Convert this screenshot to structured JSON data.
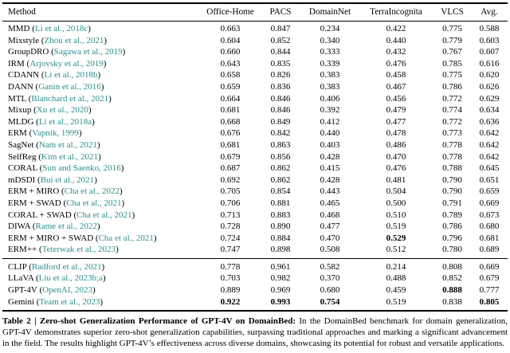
{
  "table": {
    "header": [
      "Method",
      "Office-Home",
      "PACS",
      "DomainNet",
      "TerraIncognita",
      "VLCS",
      "Avg."
    ],
    "sections": [
      {
        "name": "traditional-methods",
        "rows": [
          {
            "method": "MMD",
            "cite": "Li et al., 2018c",
            "values": [
              "0.663",
              "0.847",
              "0.234",
              "0.422",
              "0.775",
              "0.588"
            ],
            "bold": []
          },
          {
            "method": "Mixstyle",
            "cite": "Zhou et al., 2021",
            "values": [
              "0.604",
              "0.852",
              "0.340",
              "0.440",
              "0.779",
              "0.603"
            ],
            "bold": []
          },
          {
            "method": "GroupDRO",
            "cite": "Sagawa et al., 2019",
            "values": [
              "0.660",
              "0.844",
              "0.333",
              "0.432",
              "0.767",
              "0.607"
            ],
            "bold": []
          },
          {
            "method": "IRM",
            "cite": "Arjovsky et al., 2019",
            "values": [
              "0.643",
              "0.835",
              "0.339",
              "0.476",
              "0.785",
              "0.616"
            ],
            "bold": []
          },
          {
            "method": "CDANN",
            "cite": "Li et al., 2018b",
            "values": [
              "0.658",
              "0.826",
              "0.383",
              "0.458",
              "0.775",
              "0.620"
            ],
            "bold": []
          },
          {
            "method": "DANN",
            "cite": "Ganin et al., 2016",
            "values": [
              "0.659",
              "0.836",
              "0.383",
              "0.467",
              "0.786",
              "0.626"
            ],
            "bold": []
          },
          {
            "method": "MTL",
            "cite": "Blanchard et al., 2021",
            "values": [
              "0.664",
              "0.846",
              "0.406",
              "0.456",
              "0.772",
              "0.629"
            ],
            "bold": []
          },
          {
            "method": "Mixup",
            "cite": "Xu et al., 2020",
            "values": [
              "0.681",
              "0.846",
              "0.392",
              "0.479",
              "0.774",
              "0.634"
            ],
            "bold": []
          },
          {
            "method": "MLDG",
            "cite": "Li et al., 2018a",
            "values": [
              "0.668",
              "0.849",
              "0.412",
              "0.477",
              "0.772",
              "0.636"
            ],
            "bold": []
          },
          {
            "method": "ERM",
            "cite": "Vapnik, 1999",
            "values": [
              "0.676",
              "0.842",
              "0.440",
              "0.478",
              "0.773",
              "0.642"
            ],
            "bold": []
          },
          {
            "method": "SagNet",
            "cite": "Nam et al., 2021",
            "values": [
              "0.681",
              "0.863",
              "0.403",
              "0.486",
              "0.778",
              "0.642"
            ],
            "bold": []
          },
          {
            "method": "SelfReg",
            "cite": "Kim et al., 2021",
            "values": [
              "0.679",
              "0.856",
              "0.428",
              "0.470",
              "0.778",
              "0.642"
            ],
            "bold": []
          },
          {
            "method": "CORAL",
            "cite": "Sun and Saenko, 2016",
            "values": [
              "0.687",
              "0.862",
              "0.415",
              "0.476",
              "0.788",
              "0.645"
            ],
            "bold": []
          },
          {
            "method": "mDSDI",
            "cite": "Bui et al., 2021",
            "values": [
              "0.692",
              "0.862",
              "0.428",
              "0.481",
              "0.790",
              "0.651"
            ],
            "bold": []
          },
          {
            "method": "ERM + MIRO",
            "cite": "Cha et al., 2022",
            "values": [
              "0.705",
              "0.854",
              "0.443",
              "0.504",
              "0.790",
              "0.659"
            ],
            "bold": []
          },
          {
            "method": "ERM + SWAD",
            "cite": "Cha et al., 2021",
            "values": [
              "0.706",
              "0.881",
              "0.465",
              "0.500",
              "0.791",
              "0.669"
            ],
            "bold": []
          },
          {
            "method": "CORAL + SWAD",
            "cite": "Cha et al., 2021",
            "values": [
              "0.713",
              "0.883",
              "0.468",
              "0.510",
              "0.789",
              "0.673"
            ],
            "bold": []
          },
          {
            "method": "DIWA",
            "cite": "Rame et al., 2022",
            "values": [
              "0.728",
              "0.890",
              "0.477",
              "0.519",
              "0.786",
              "0.680"
            ],
            "bold": []
          },
          {
            "method": "ERM + MIRO + SWAD",
            "cite": "Cha et al., 2021",
            "values": [
              "0.724",
              "0.884",
              "0.470",
              "0.529",
              "0.796",
              "0.681"
            ],
            "bold": [
              3
            ]
          },
          {
            "method": "ERM++",
            "cite": "Teterwak et al., 2023",
            "values": [
              "0.747",
              "0.898",
              "0.508",
              "0.512",
              "0.780",
              "0.689"
            ],
            "bold": []
          }
        ]
      },
      {
        "name": "foundation-models",
        "rows": [
          {
            "method": "CLIP",
            "cite": "Radford et al., 2021",
            "values": [
              "0.778",
              "0.961",
              "0.582",
              "0.214",
              "0.808",
              "0.669"
            ],
            "bold": []
          },
          {
            "method": "LLaVA",
            "cite": "Liu et al., 2023b;a",
            "values": [
              "0.703",
              "0.982",
              "0.370",
              "0.488",
              "0.852",
              "0.679"
            ],
            "bold": []
          },
          {
            "method": "GPT-4V",
            "cite": "OpenAI, 2023",
            "values": [
              "0.889",
              "0.969",
              "0.680",
              "0.459",
              "0.888",
              "0.777"
            ],
            "bold": [
              4
            ]
          },
          {
            "method": "Gemini",
            "cite": "Team et al., 2023",
            "values": [
              "0.922",
              "0.993",
              "0.754",
              "0.519",
              "0.838",
              "0.805"
            ],
            "bold": [
              0,
              1,
              2,
              5
            ]
          }
        ]
      }
    ]
  },
  "caption": {
    "label": "Table 2",
    "separator": "|",
    "title": "Zero-shot Generalization Performance of GPT-4V on DomainBed:",
    "body": "In the DomainBed benchmark for domain generalization, GPT-4V demonstrates superior zero-shot generalization capabilities, surpassing traditional approaches and marking a significant advancement in the field. The results highlight GPT-4V’s effectiveness across diverse domains, showcasing its potential for robust and versatile applications."
  },
  "colors": {
    "citation": "#2d8d8d",
    "text": "#000000",
    "rule": "#000000"
  }
}
